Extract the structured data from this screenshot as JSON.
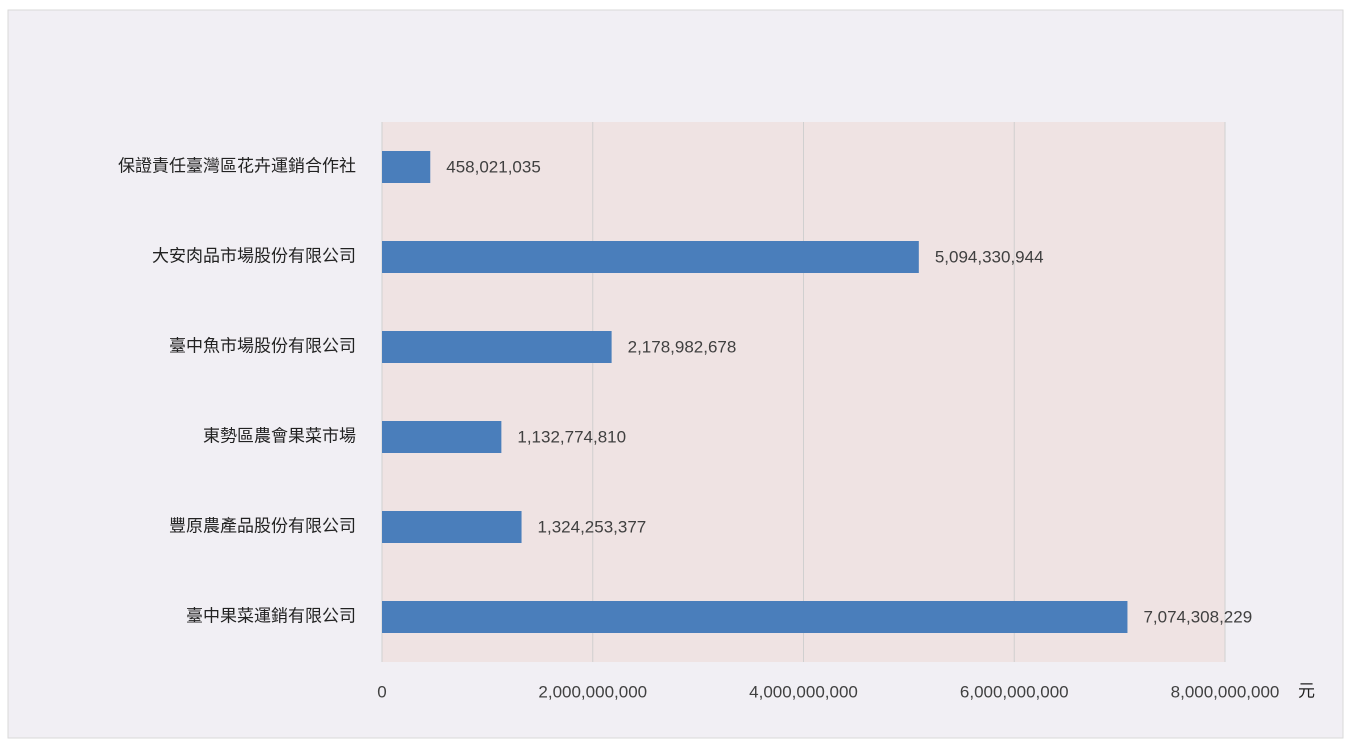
{
  "chart_data": {
    "type": "barh",
    "categories": [
      "保證責任臺灣區花卉運銷合作社",
      "大安肉品市場股份有限公司",
      "臺中魚市場股份有限公司",
      "東勢區農會果菜市場",
      "豐原農產品股份有限公司",
      "臺中果菜運銷有限公司"
    ],
    "values": [
      458021035,
      5094330944,
      2178982678,
      1132774810,
      1324253377,
      7074308229
    ],
    "value_labels": [
      "458,021,035",
      "5,094,330,944",
      "2,178,982,678",
      "1,132,774,810",
      "1,324,253,377",
      "7,074,308,229"
    ],
    "color": "#4a7ebb",
    "xlabel": "元",
    "xlim": [
      0,
      8000000000
    ],
    "xticks": [
      0,
      {
        "value": 2000000000,
        "label": "2,000,000,000"
      },
      {
        "value": 4000000000,
        "label": "4,000,000,000"
      },
      {
        "value": 6000000000,
        "label": "6,000,000,000"
      },
      {
        "value": 8000000000,
        "label": "8,000,000,000"
      }
    ],
    "grid": true
  }
}
